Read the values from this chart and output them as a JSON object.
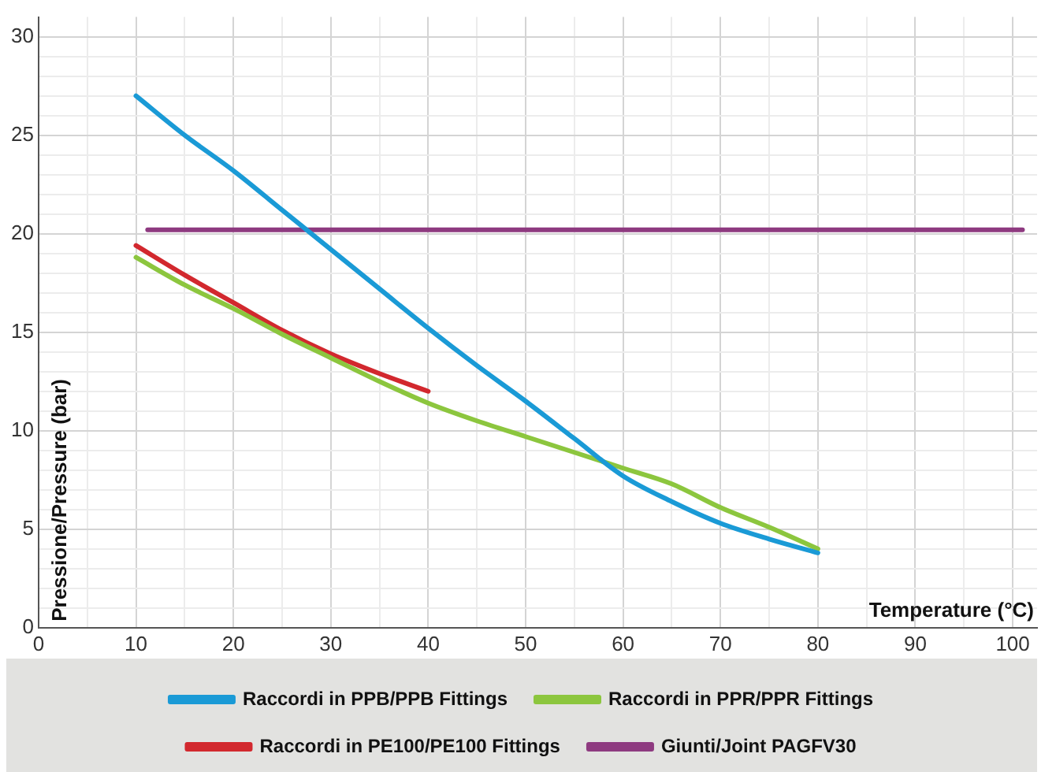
{
  "chart_data": {
    "type": "line",
    "xlabel": "Temperature (°C)",
    "ylabel": "Pressione/Pressure (bar)",
    "xlim": [
      0,
      102.5
    ],
    "ylim": [
      0,
      31
    ],
    "xticks": [
      0,
      {
        "value": 5,
        "label": null
      },
      10,
      {
        "value": 15,
        "label": null
      },
      20,
      {
        "value": 25,
        "label": null
      },
      30,
      {
        "value": 35,
        "label": null
      },
      40,
      {
        "value": 45,
        "label": null
      },
      50,
      {
        "value": 55,
        "label": null
      },
      60,
      {
        "value": 65,
        "label": null
      },
      70,
      {
        "value": 75,
        "label": null
      },
      80,
      {
        "value": 85,
        "label": null
      },
      90,
      {
        "value": 95,
        "label": null
      },
      100
    ],
    "yticks": [
      0,
      {
        "value": 1,
        "label": null
      },
      {
        "value": 2,
        "label": null
      },
      {
        "value": 3,
        "label": null
      },
      {
        "value": 4,
        "label": null
      },
      5,
      {
        "value": 6,
        "label": null
      },
      {
        "value": 7,
        "label": null
      },
      {
        "value": 8,
        "label": null
      },
      {
        "value": 9,
        "label": null
      },
      10,
      {
        "value": 11,
        "label": null
      },
      {
        "value": 12,
        "label": null
      },
      {
        "value": 13,
        "label": null
      },
      {
        "value": 14,
        "label": null
      },
      15,
      {
        "value": 16,
        "label": null
      },
      {
        "value": 17,
        "label": null
      },
      {
        "value": 18,
        "label": null
      },
      {
        "value": 19,
        "label": null
      },
      20,
      {
        "value": 21,
        "label": null
      },
      {
        "value": 22,
        "label": null
      },
      {
        "value": 23,
        "label": null
      },
      {
        "value": 24,
        "label": null
      },
      25,
      {
        "value": 26,
        "label": null
      },
      {
        "value": 27,
        "label": null
      },
      {
        "value": 28,
        "label": null
      },
      {
        "value": 29,
        "label": null
      },
      30
    ],
    "grid": true,
    "legend": "bottom",
    "marker": "none",
    "line_style": "solid",
    "series": [
      {
        "name": "Raccordi in PPB/PPB Fittings",
        "color": "#1a9ad6",
        "x": [
          10,
          15,
          20,
          25,
          30,
          35,
          40,
          45,
          50,
          55,
          60,
          65,
          70,
          75,
          80
        ],
        "values": [
          27,
          25,
          23.2,
          21.2,
          19.2,
          17.2,
          15.2,
          13.3,
          11.5,
          9.6,
          7.7,
          6.4,
          5.3,
          4.5,
          3.8
        ]
      },
      {
        "name": "Raccordi in PPR/PPR Fittings",
        "color": "#8cc63e",
        "x": [
          10,
          15,
          20,
          25,
          30,
          35,
          40,
          45,
          50,
          55,
          60,
          65,
          70,
          75,
          80
        ],
        "values": [
          18.8,
          17.4,
          16.2,
          14.9,
          13.7,
          12.5,
          11.4,
          10.5,
          9.7,
          8.9,
          8.1,
          7.3,
          6.1,
          5.1,
          4
        ]
      },
      {
        "name": "Raccordi in PE100/PE100 Fittings",
        "color": "#d2282e",
        "x": [
          10,
          15,
          20,
          25,
          30,
          35,
          40
        ],
        "values": [
          19.4,
          17.9,
          16.5,
          15.1,
          13.9,
          12.9,
          12
        ]
      },
      {
        "name": "Giunti/Joint PAGFV30",
        "color": "#8e3a80",
        "x": [
          11.2,
          101
        ],
        "values": [
          20.2,
          20.2
        ]
      }
    ]
  }
}
